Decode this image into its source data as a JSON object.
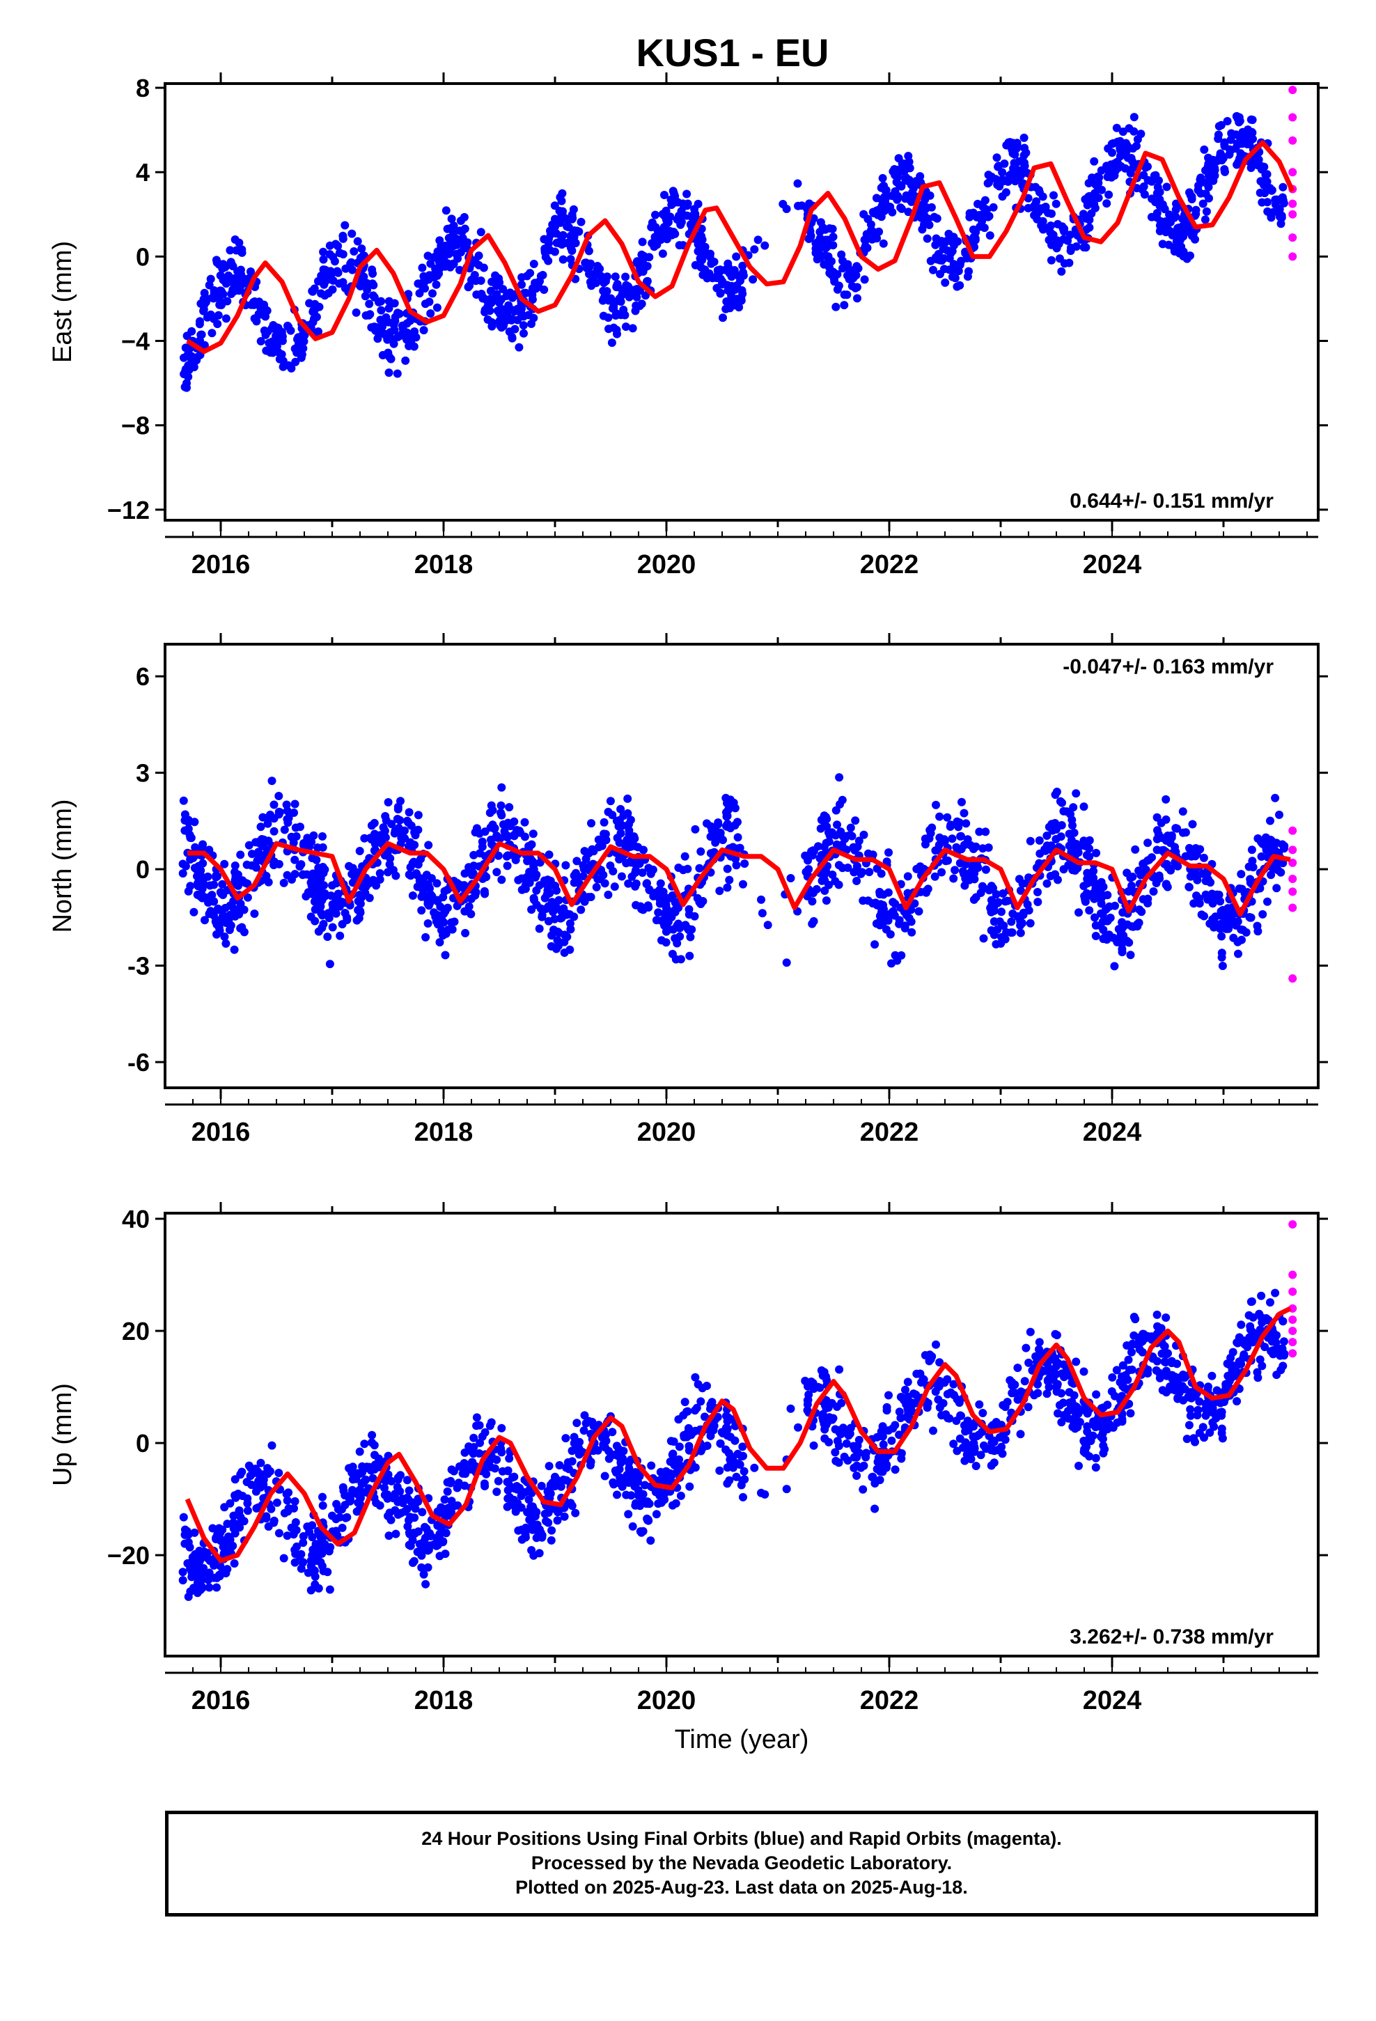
{
  "title": "KUS1 - EU",
  "footer": {
    "line1": "24 Hour Positions Using Final Orbits (blue) and Rapid Orbits (magenta).",
    "line2": "Processed by the Nevada Geodetic Laboratory.",
    "line3": "Plotted on 2025-Aug-23. Last data on 2025-Aug-18."
  },
  "colors": {
    "final": "#0000ff",
    "rapid": "#ff00ff",
    "model": "#ff0000"
  },
  "chart_data": [
    {
      "type": "scatter",
      "ylabel": "East (mm)",
      "xlabel": "",
      "rate_label": "0.644+/- 0.151 mm/yr",
      "rate_position": "bottom-right",
      "xlim": [
        2015.5,
        2025.85
      ],
      "ylim": [
        -12.5,
        8.2
      ],
      "yticks": [
        -12,
        -8,
        -4,
        0,
        4,
        8
      ],
      "yticklabels": [
        "−12",
        "−8",
        "−4",
        "0",
        "4",
        "8"
      ],
      "xticks": [
        2016,
        2018,
        2020,
        2022,
        2024
      ],
      "xticklabels": [
        "2016",
        "2018",
        "2020",
        "2022",
        "2024"
      ],
      "model": {
        "x": [
          2015.7,
          2015.85,
          2016.0,
          2016.15,
          2016.3,
          2016.4,
          2016.55,
          2016.7,
          2016.85,
          2017.0,
          2017.15,
          2017.25,
          2017.4,
          2017.55,
          2017.7,
          2017.85,
          2018.0,
          2018.15,
          2018.25,
          2018.4,
          2018.55,
          2018.7,
          2018.85,
          2019.0,
          2019.15,
          2019.3,
          2019.45,
          2019.6,
          2019.75,
          2019.9,
          2020.05,
          2020.2,
          2020.35,
          2020.45,
          2020.6,
          2020.75,
          2020.9,
          2021.05,
          2021.2,
          2021.3,
          2021.45,
          2021.6,
          2021.75,
          2021.9,
          2022.05,
          2022.2,
          2022.3,
          2022.45,
          2022.6,
          2022.75,
          2022.9,
          2023.05,
          2023.2,
          2023.3,
          2023.45,
          2023.6,
          2023.75,
          2023.9,
          2024.05,
          2024.2,
          2024.3,
          2024.45,
          2024.6,
          2024.75,
          2024.9,
          2025.05,
          2025.2,
          2025.35,
          2025.5,
          2025.62
        ],
        "y": [
          -4.0,
          -4.5,
          -4.1,
          -2.8,
          -1.0,
          -0.3,
          -1.2,
          -3.0,
          -3.9,
          -3.6,
          -2.0,
          -0.5,
          0.3,
          -0.8,
          -2.6,
          -3.1,
          -2.8,
          -1.3,
          0.3,
          1.0,
          -0.3,
          -2.0,
          -2.6,
          -2.3,
          -0.9,
          1.0,
          1.7,
          0.6,
          -1.2,
          -1.9,
          -1.4,
          0.6,
          2.2,
          2.3,
          0.9,
          -0.5,
          -1.3,
          -1.2,
          0.5,
          2.2,
          3.0,
          1.8,
          0.0,
          -0.6,
          -0.2,
          1.8,
          3.3,
          3.5,
          1.8,
          0.0,
          0.0,
          1.2,
          2.8,
          4.2,
          4.4,
          2.6,
          0.9,
          0.7,
          1.6,
          3.6,
          4.9,
          4.6,
          2.8,
          1.4,
          1.5,
          2.8,
          4.6,
          5.4,
          4.5,
          3.1
        ]
      },
      "series": [
        {
          "name": "final",
          "color": "#0000ff",
          "trend": [
            2015.9,
            -3.0,
            2025.5,
            4.0
          ],
          "seasonal": {
            "amp": 2.0,
            "phase": 0.1
          },
          "noise": 1.1,
          "xrange": [
            2015.65,
            2025.55
          ]
        },
        {
          "name": "rapid",
          "color": "#ff00ff",
          "points": [
            [
              2025.62,
              7.9
            ],
            [
              2025.62,
              6.6
            ],
            [
              2025.62,
              5.5
            ],
            [
              2025.62,
              4.0
            ],
            [
              2025.62,
              3.2
            ],
            [
              2025.62,
              2.5
            ],
            [
              2025.62,
              2.0
            ],
            [
              2025.62,
              0.9
            ],
            [
              2025.62,
              0.0
            ]
          ]
        }
      ]
    },
    {
      "type": "scatter",
      "ylabel": "North (mm)",
      "xlabel": "",
      "rate_label": "-0.047+/- 0.163 mm/yr",
      "rate_position": "top-right",
      "xlim": [
        2015.5,
        2025.85
      ],
      "ylim": [
        -6.8,
        7.0
      ],
      "yticks": [
        -6,
        -3,
        0,
        3,
        6
      ],
      "yticklabels": [
        "-6",
        "-3",
        "0",
        "3",
        "6"
      ],
      "xticks": [
        2016,
        2018,
        2020,
        2022,
        2024
      ],
      "xticklabels": [
        "2016",
        "2018",
        "2020",
        "2022",
        "2024"
      ],
      "model": {
        "x": [
          2015.7,
          2015.85,
          2016.0,
          2016.15,
          2016.3,
          2016.5,
          2016.7,
          2016.85,
          2017.0,
          2017.15,
          2017.3,
          2017.5,
          2017.7,
          2017.85,
          2018.0,
          2018.15,
          2018.3,
          2018.5,
          2018.7,
          2018.85,
          2019.0,
          2019.15,
          2019.3,
          2019.5,
          2019.7,
          2019.85,
          2020.0,
          2020.15,
          2020.3,
          2020.5,
          2020.7,
          2020.85,
          2021.0,
          2021.15,
          2021.3,
          2021.5,
          2021.7,
          2021.85,
          2022.0,
          2022.15,
          2022.3,
          2022.5,
          2022.7,
          2022.85,
          2023.0,
          2023.15,
          2023.3,
          2023.5,
          2023.7,
          2023.85,
          2024.0,
          2024.15,
          2024.3,
          2024.5,
          2024.7,
          2024.85,
          2025.0,
          2025.15,
          2025.3,
          2025.45,
          2025.6
        ],
        "y": [
          0.5,
          0.5,
          0.0,
          -0.9,
          -0.5,
          0.8,
          0.6,
          0.5,
          0.4,
          -1.0,
          0.0,
          0.8,
          0.5,
          0.5,
          0.0,
          -1.0,
          -0.3,
          0.8,
          0.5,
          0.5,
          0.0,
          -1.1,
          -0.3,
          0.7,
          0.4,
          0.4,
          0.0,
          -1.1,
          -0.3,
          0.6,
          0.4,
          0.4,
          0.0,
          -1.2,
          -0.3,
          0.6,
          0.3,
          0.3,
          0.0,
          -1.2,
          -0.3,
          0.6,
          0.3,
          0.3,
          0.0,
          -1.2,
          -0.3,
          0.6,
          0.2,
          0.2,
          0.0,
          -1.3,
          -0.3,
          0.5,
          0.1,
          0.1,
          -0.3,
          -1.4,
          -0.4,
          0.4,
          0.3
        ]
      },
      "series": [
        {
          "name": "final",
          "color": "#0000ff",
          "trend": [
            2015.9,
            0.0,
            2025.5,
            -0.4
          ],
          "seasonal": {
            "amp": 1.2,
            "phase": 0.55
          },
          "noise": 1.0,
          "xrange": [
            2015.65,
            2025.55
          ]
        },
        {
          "name": "rapid",
          "color": "#ff00ff",
          "points": [
            [
              2025.62,
              1.2
            ],
            [
              2025.62,
              0.6
            ],
            [
              2025.62,
              0.2
            ],
            [
              2025.62,
              -0.3
            ],
            [
              2025.62,
              -0.7
            ],
            [
              2025.62,
              -1.2
            ],
            [
              2025.62,
              -3.4
            ]
          ]
        }
      ]
    },
    {
      "type": "scatter",
      "ylabel": "Up (mm)",
      "xlabel": "Time (year)",
      "rate_label": "3.262+/- 0.738 mm/yr",
      "rate_position": "bottom-right",
      "xlim": [
        2015.5,
        2025.85
      ],
      "ylim": [
        -38,
        41
      ],
      "yticks": [
        -20,
        0,
        20,
        40
      ],
      "yticklabels": [
        "−20",
        "0",
        "20",
        "40"
      ],
      "xticks": [
        2016,
        2018,
        2020,
        2022,
        2024
      ],
      "xticklabels": [
        "2016",
        "2018",
        "2020",
        "2022",
        "2024"
      ],
      "model": {
        "x": [
          2015.7,
          2015.85,
          2016.0,
          2016.15,
          2016.3,
          2016.45,
          2016.6,
          2016.75,
          2016.9,
          2017.05,
          2017.2,
          2017.35,
          2017.5,
          2017.6,
          2017.75,
          2017.9,
          2018.05,
          2018.2,
          2018.35,
          2018.5,
          2018.6,
          2018.75,
          2018.9,
          2019.05,
          2019.2,
          2019.35,
          2019.5,
          2019.6,
          2019.75,
          2019.9,
          2020.05,
          2020.2,
          2020.35,
          2020.5,
          2020.6,
          2020.75,
          2020.9,
          2021.05,
          2021.2,
          2021.35,
          2021.5,
          2021.6,
          2021.75,
          2021.9,
          2022.05,
          2022.2,
          2022.35,
          2022.5,
          2022.6,
          2022.75,
          2022.9,
          2023.05,
          2023.2,
          2023.35,
          2023.5,
          2023.6,
          2023.75,
          2023.9,
          2024.05,
          2024.2,
          2024.35,
          2024.5,
          2024.6,
          2024.75,
          2024.9,
          2025.05,
          2025.2,
          2025.35,
          2025.5,
          2025.6
        ],
        "y": [
          -10,
          -17,
          -21,
          -20,
          -15,
          -9,
          -5.5,
          -9,
          -15,
          -18,
          -16,
          -9,
          -3.5,
          -2,
          -7,
          -13,
          -14.5,
          -11,
          -3,
          1,
          0,
          -6,
          -10.5,
          -11,
          -6,
          1,
          4.5,
          3,
          -4,
          -7.5,
          -8,
          -4,
          3,
          7.5,
          6,
          -1,
          -4.5,
          -4.5,
          0,
          7,
          11,
          8.5,
          2,
          -1.5,
          -1.5,
          3,
          10,
          14,
          12,
          5,
          2,
          2.5,
          7,
          14,
          17.5,
          15,
          8,
          5,
          5.5,
          10,
          17,
          20,
          18,
          10,
          8,
          8.5,
          13,
          19,
          23,
          24
        ]
      },
      "series": [
        {
          "name": "final",
          "color": "#0000ff",
          "trend": [
            2015.9,
            -16.0,
            2025.5,
            14.0
          ],
          "seasonal": {
            "amp": 6.5,
            "phase": 0.35
          },
          "noise": 5.0,
          "xrange": [
            2015.65,
            2025.55
          ]
        },
        {
          "name": "rapid",
          "color": "#ff00ff",
          "points": [
            [
              2025.62,
              39
            ],
            [
              2025.62,
              30
            ],
            [
              2025.62,
              27
            ],
            [
              2025.62,
              24
            ],
            [
              2025.62,
              22
            ],
            [
              2025.62,
              20
            ],
            [
              2025.62,
              18
            ],
            [
              2025.62,
              16
            ]
          ]
        }
      ]
    }
  ]
}
